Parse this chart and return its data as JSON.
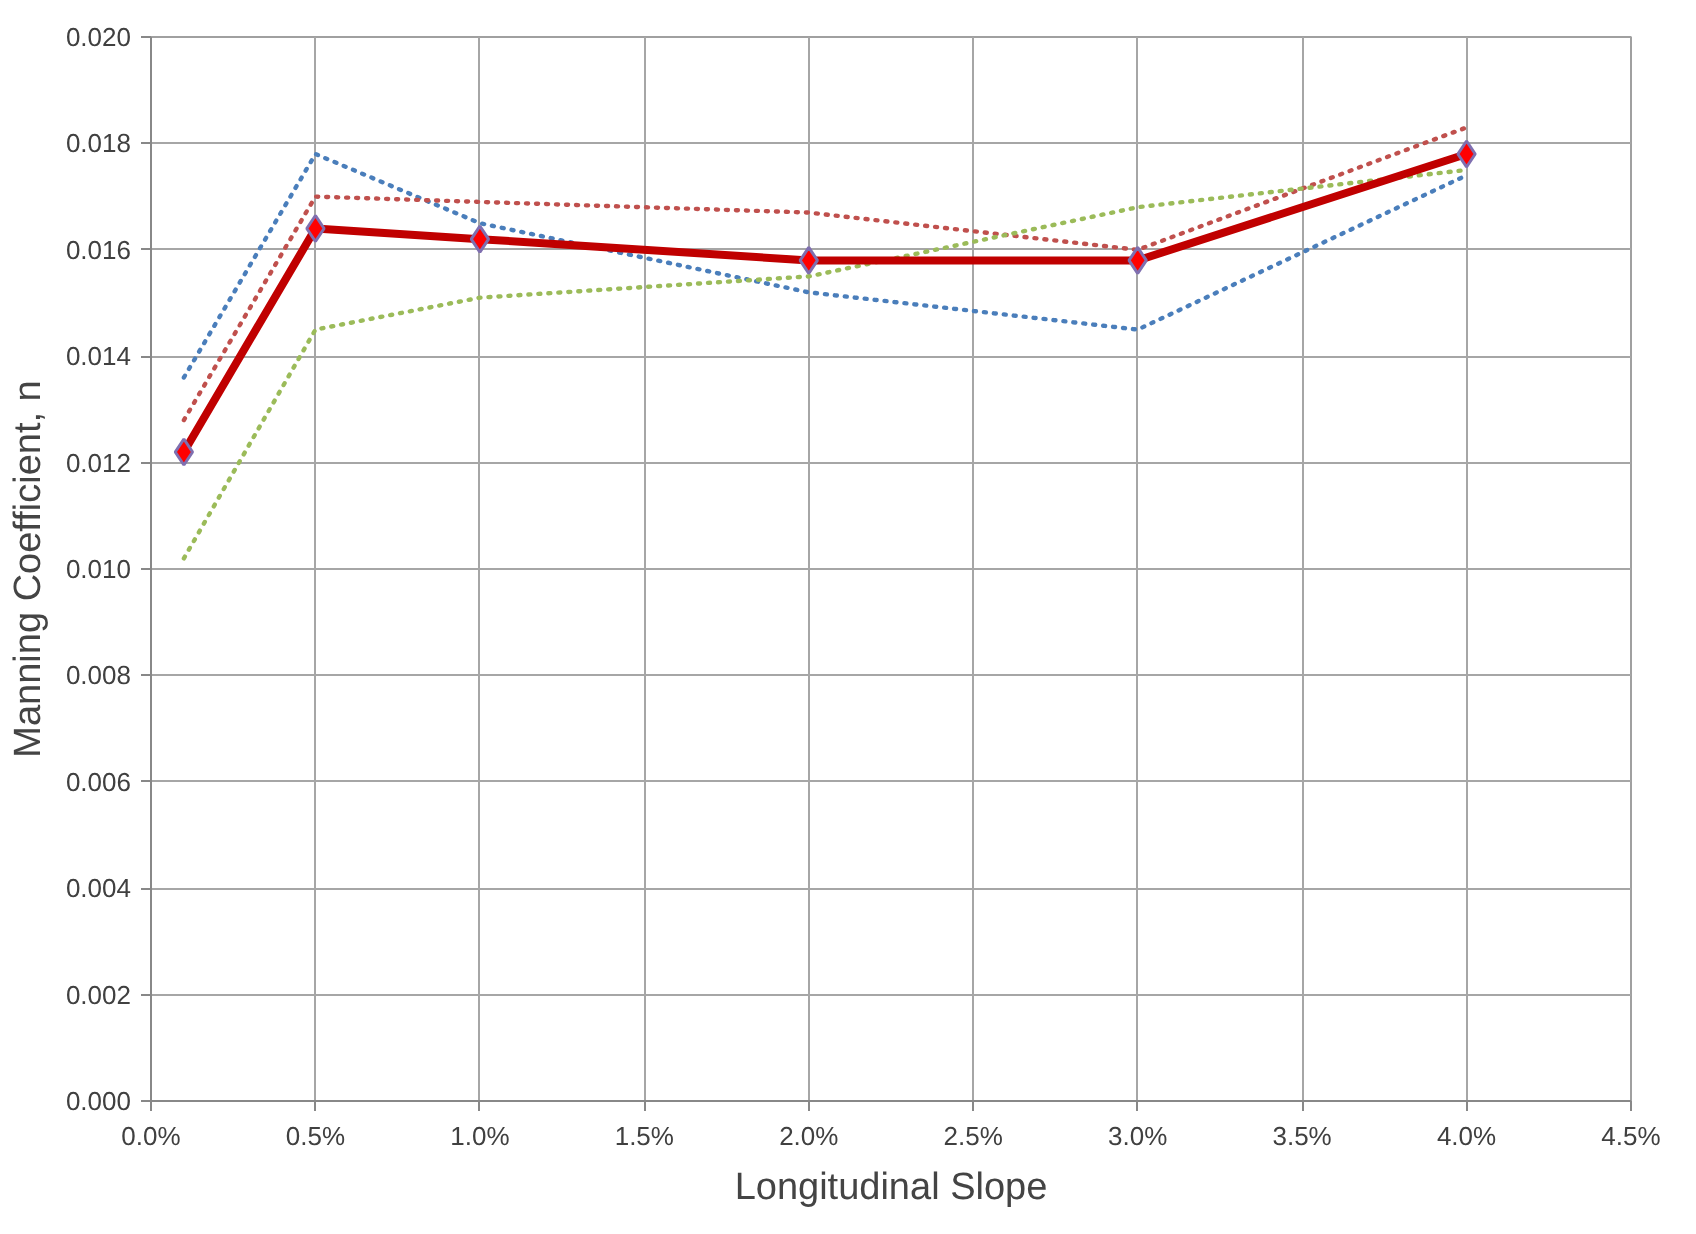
{
  "chart_data": {
    "type": "line",
    "xlabel": "Longitudinal Slope",
    "ylabel": "Manning Coefficient, n",
    "x": [
      0.1,
      0.5,
      1.0,
      2.0,
      3.0,
      4.0
    ],
    "series": [
      {
        "color": "#4a7ebb",
        "line_style": "dotted",
        "marker": "none",
        "values": [
          0.0136,
          0.0178,
          0.0165,
          0.0152,
          0.0145,
          0.0174
        ]
      },
      {
        "color": "#c0504d",
        "line_style": "dotted",
        "marker": "none",
        "values": [
          0.0128,
          0.017,
          0.0169,
          0.0167,
          0.016,
          0.0183
        ]
      },
      {
        "color": "#9bbb59",
        "line_style": "dotted",
        "marker": "none",
        "values": [
          0.0102,
          0.0145,
          0.0151,
          0.0155,
          0.0168,
          0.0175
        ]
      },
      {
        "color": "#c00000",
        "line_style": "solid",
        "marker": "diamond",
        "values": [
          0.0122,
          0.0164,
          0.0162,
          0.0158,
          0.0158,
          0.0178
        ]
      }
    ],
    "xlim": [
      0,
      4.5
    ],
    "xticks": [
      {
        "value": 0,
        "label": "0.0%"
      },
      {
        "value": 0.5,
        "label": "0.5%"
      },
      {
        "value": 1.0,
        "label": "1.0%"
      },
      {
        "value": 1.5,
        "label": "1.5%"
      },
      {
        "value": 2.0,
        "label": "2.0%"
      },
      {
        "value": 2.5,
        "label": "2.5%"
      },
      {
        "value": 3.0,
        "label": "3.0%"
      },
      {
        "value": 3.5,
        "label": "3.5%"
      },
      {
        "value": 4.0,
        "label": "4.0%"
      },
      {
        "value": 4.5,
        "label": "4.5%"
      }
    ],
    "ylim": [
      0,
      0.02
    ],
    "yticks": [
      {
        "value": 0,
        "label": "0.000"
      },
      {
        "value": 0.002,
        "label": "0.002"
      },
      {
        "value": 0.004,
        "label": "0.004"
      },
      {
        "value": 0.006,
        "label": "0.006"
      },
      {
        "value": 0.008,
        "label": "0.008"
      },
      {
        "value": 0.01,
        "label": "0.010"
      },
      {
        "value": 0.012,
        "label": "0.012"
      },
      {
        "value": 0.014,
        "label": "0.014"
      },
      {
        "value": 0.016,
        "label": "0.016"
      },
      {
        "value": 0.018,
        "label": "0.018"
      },
      {
        "value": 0.02,
        "label": "0.020"
      }
    ],
    "grid": true
  }
}
